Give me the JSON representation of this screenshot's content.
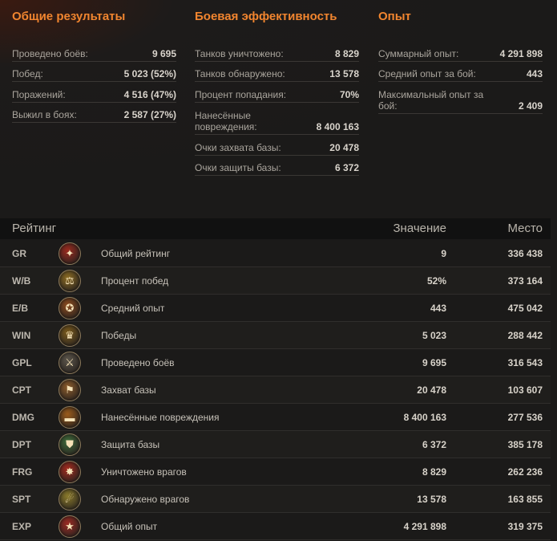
{
  "general": {
    "title": "Общие результаты",
    "rows": [
      {
        "label": "Проведено боёв:",
        "value": "9 695"
      },
      {
        "label": "Побед:",
        "value": "5 023 (52%)"
      },
      {
        "label": "Поражений:",
        "value": "4 516 (47%)"
      },
      {
        "label": "Выжил в боях:",
        "value": "2 587 (27%)"
      }
    ]
  },
  "combat": {
    "title": "Боевая эффективность",
    "rows": [
      {
        "label": "Танков уничтожено:",
        "value": "8 829"
      },
      {
        "label": "Танков обнаружено:",
        "value": "13 578"
      },
      {
        "label": "Процент попадания:",
        "value": "70%"
      },
      {
        "label": "Нанесённые повреждения:",
        "value": "8 400 163"
      },
      {
        "label": "Очки захвата базы:",
        "value": "20 478"
      },
      {
        "label": "Очки защиты базы:",
        "value": "6 372"
      }
    ]
  },
  "experience": {
    "title": "Опыт",
    "rows": [
      {
        "label": "Суммарный опыт:",
        "value": "4 291 898"
      },
      {
        "label": "Средний опыт за бой:",
        "value": "443"
      },
      {
        "label": "Максимальный опыт за бой:",
        "value": "2 409"
      }
    ]
  },
  "rating": {
    "header": {
      "title": "Рейтинг",
      "value": "Значение",
      "place": "Место"
    },
    "rows": [
      {
        "code": "GR",
        "icon": "gr-rating-icon",
        "glyph": "✦",
        "color": "#9a2a1e",
        "name": "Общий рейтинг",
        "value": "9",
        "place": "336 438"
      },
      {
        "code": "W/B",
        "icon": "scales-icon",
        "glyph": "⚖",
        "color": "#8a6a22",
        "name": "Процент побед",
        "value": "52%",
        "place": "373 164"
      },
      {
        "code": "E/B",
        "icon": "star-medal-icon",
        "glyph": "✪",
        "color": "#8a4a1e",
        "name": "Средний опыт",
        "value": "443",
        "place": "475 042"
      },
      {
        "code": "WIN",
        "icon": "trophy-cup-icon",
        "glyph": "♛",
        "color": "#7a5a1c",
        "name": "Победы",
        "value": "5 023",
        "place": "288 442"
      },
      {
        "code": "GPL",
        "icon": "crossed-swords-icon",
        "glyph": "⚔",
        "color": "#5a544a",
        "name": "Проведено боёв",
        "value": "9 695",
        "place": "316 543"
      },
      {
        "code": "CPT",
        "icon": "capture-flag-icon",
        "glyph": "⚑",
        "color": "#8a5a2a",
        "name": "Захват базы",
        "value": "20 478",
        "place": "103 607"
      },
      {
        "code": "DMG",
        "icon": "tank-icon",
        "glyph": "▬",
        "color": "#9a5a1a",
        "name": "Нанесённые повреждения",
        "value": "8 400 163",
        "place": "277 536"
      },
      {
        "code": "DPT",
        "icon": "defense-shield-icon",
        "glyph": "⛊",
        "color": "#3e6a3a",
        "name": "Защита базы",
        "value": "6 372",
        "place": "385 178"
      },
      {
        "code": "FRG",
        "icon": "destroyed-enemies-icon",
        "glyph": "✸",
        "color": "#a02a1e",
        "name": "Уничтожено врагов",
        "value": "8 829",
        "place": "262 236"
      },
      {
        "code": "SPT",
        "icon": "binoculars-icon",
        "glyph": "☄",
        "color": "#8a7a2a",
        "name": "Обнаружено врагов",
        "value": "13 578",
        "place": "163 855"
      },
      {
        "code": "EXP",
        "icon": "red-star-icon",
        "glyph": "★",
        "color": "#9a2a22",
        "name": "Общий опыт",
        "value": "4 291 898",
        "place": "319 375"
      }
    ]
  }
}
